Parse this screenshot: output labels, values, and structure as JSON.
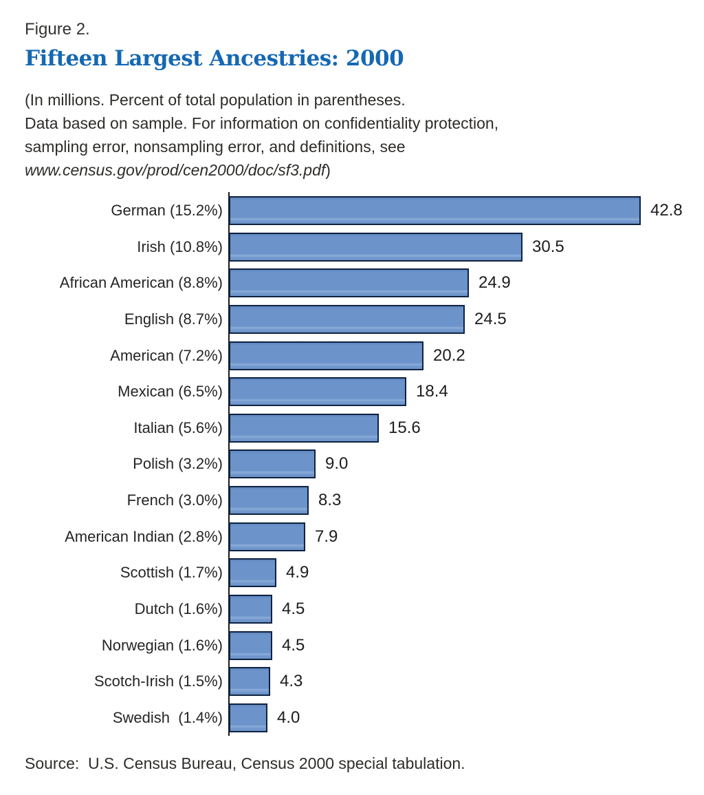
{
  "figure_label": "Figure 2.",
  "title": "Fifteen Largest Ancestries: 2000",
  "note_lines": [
    "(In millions. Percent of total population in parentheses.",
    "Data based on sample.  For information on confidentiality protection,",
    "sampling error, nonsampling error, and definitions, see"
  ],
  "note_url": "www.census.gov/prod/cen2000/doc/sf3.pdf",
  "note_url_suffix": ")",
  "source": "Source:  U.S. Census Bureau, Census 2000 special tabulation.",
  "colors": {
    "title_blue": "#1568b3",
    "bar_fill": "#6c93ca",
    "bar_border": "#0e2240",
    "axis_line": "#1a1a1a",
    "text": "#2e2c29"
  },
  "chart_data": {
    "type": "bar",
    "orientation": "horizontal",
    "title": "Fifteen Largest Ancestries: 2000",
    "unit": "millions of people",
    "categories": [
      "German (15.2%)",
      "Irish (10.8%)",
      "African American (8.8%)",
      "English (8.7%)",
      "American (7.2%)",
      "Mexican (6.5%)",
      "Italian (5.6%)",
      "Polish (3.2%)",
      "French (3.0%)",
      "American Indian (2.8%)",
      "Scottish (1.7%)",
      "Dutch (1.6%)",
      "Norwegian (1.6%)",
      "Scotch-Irish (1.5%)",
      "Swedish  (1.4%)"
    ],
    "values": [
      42.8,
      30.5,
      24.9,
      24.5,
      20.2,
      18.4,
      15.6,
      9.0,
      8.3,
      7.9,
      4.9,
      4.5,
      4.5,
      4.3,
      4.0
    ],
    "value_labels": [
      "42.8",
      "30.5",
      "24.9",
      "24.5",
      "20.2",
      "18.4",
      "15.6",
      "9.0",
      "8.3",
      "7.9",
      "4.9",
      "4.5",
      "4.5",
      "4.3",
      "4.0"
    ],
    "xlim": [
      0,
      44
    ],
    "grid": false,
    "legend": "none"
  }
}
